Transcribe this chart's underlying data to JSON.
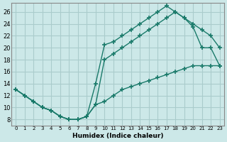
{
  "title": "",
  "xlabel": "Humidex (Indice chaleur)",
  "ylabel": "",
  "bg_color": "#cce8e8",
  "grid_color": "#aacccc",
  "line_color": "#1a7a6a",
  "xlim": [
    -0.5,
    23.5
  ],
  "ylim": [
    7,
    27.5
  ],
  "xticks": [
    0,
    1,
    2,
    3,
    4,
    5,
    6,
    7,
    8,
    9,
    10,
    11,
    12,
    13,
    14,
    15,
    16,
    17,
    18,
    19,
    20,
    21,
    22,
    23
  ],
  "yticks": [
    8,
    10,
    12,
    14,
    16,
    18,
    20,
    22,
    24,
    26
  ],
  "line1_x": [
    0,
    1,
    2,
    3,
    4,
    5,
    6,
    7,
    8,
    9,
    10,
    11,
    12,
    13,
    14,
    15,
    16,
    17,
    18,
    19,
    20,
    21,
    22,
    23
  ],
  "line1_y": [
    13,
    12,
    11,
    10,
    9.5,
    8.5,
    8,
    8,
    8.5,
    14,
    20.5,
    21,
    22,
    23,
    24,
    25,
    26,
    27,
    26,
    25,
    23.5,
    20,
    20,
    17
  ],
  "line2_x": [
    0,
    1,
    2,
    3,
    4,
    5,
    6,
    7,
    8,
    9,
    10,
    11,
    12,
    13,
    14,
    15,
    16,
    17,
    18,
    19,
    20,
    21,
    22,
    23
  ],
  "line2_y": [
    13,
    12,
    11,
    10,
    9.5,
    8.5,
    8,
    8,
    8.5,
    10.5,
    18,
    19,
    20,
    21,
    22,
    23,
    24,
    25,
    26,
    25,
    24,
    23,
    22,
    20
  ],
  "line3_x": [
    0,
    1,
    2,
    3,
    4,
    5,
    6,
    7,
    8,
    9,
    10,
    11,
    12,
    13,
    14,
    15,
    16,
    17,
    18,
    19,
    20,
    21,
    22,
    23
  ],
  "line3_y": [
    13,
    12,
    11,
    10,
    9.5,
    8.5,
    8,
    8,
    8.5,
    10.5,
    11,
    12,
    13,
    13.5,
    14,
    14.5,
    15,
    15.5,
    16,
    16.5,
    17,
    17,
    17,
    17
  ]
}
